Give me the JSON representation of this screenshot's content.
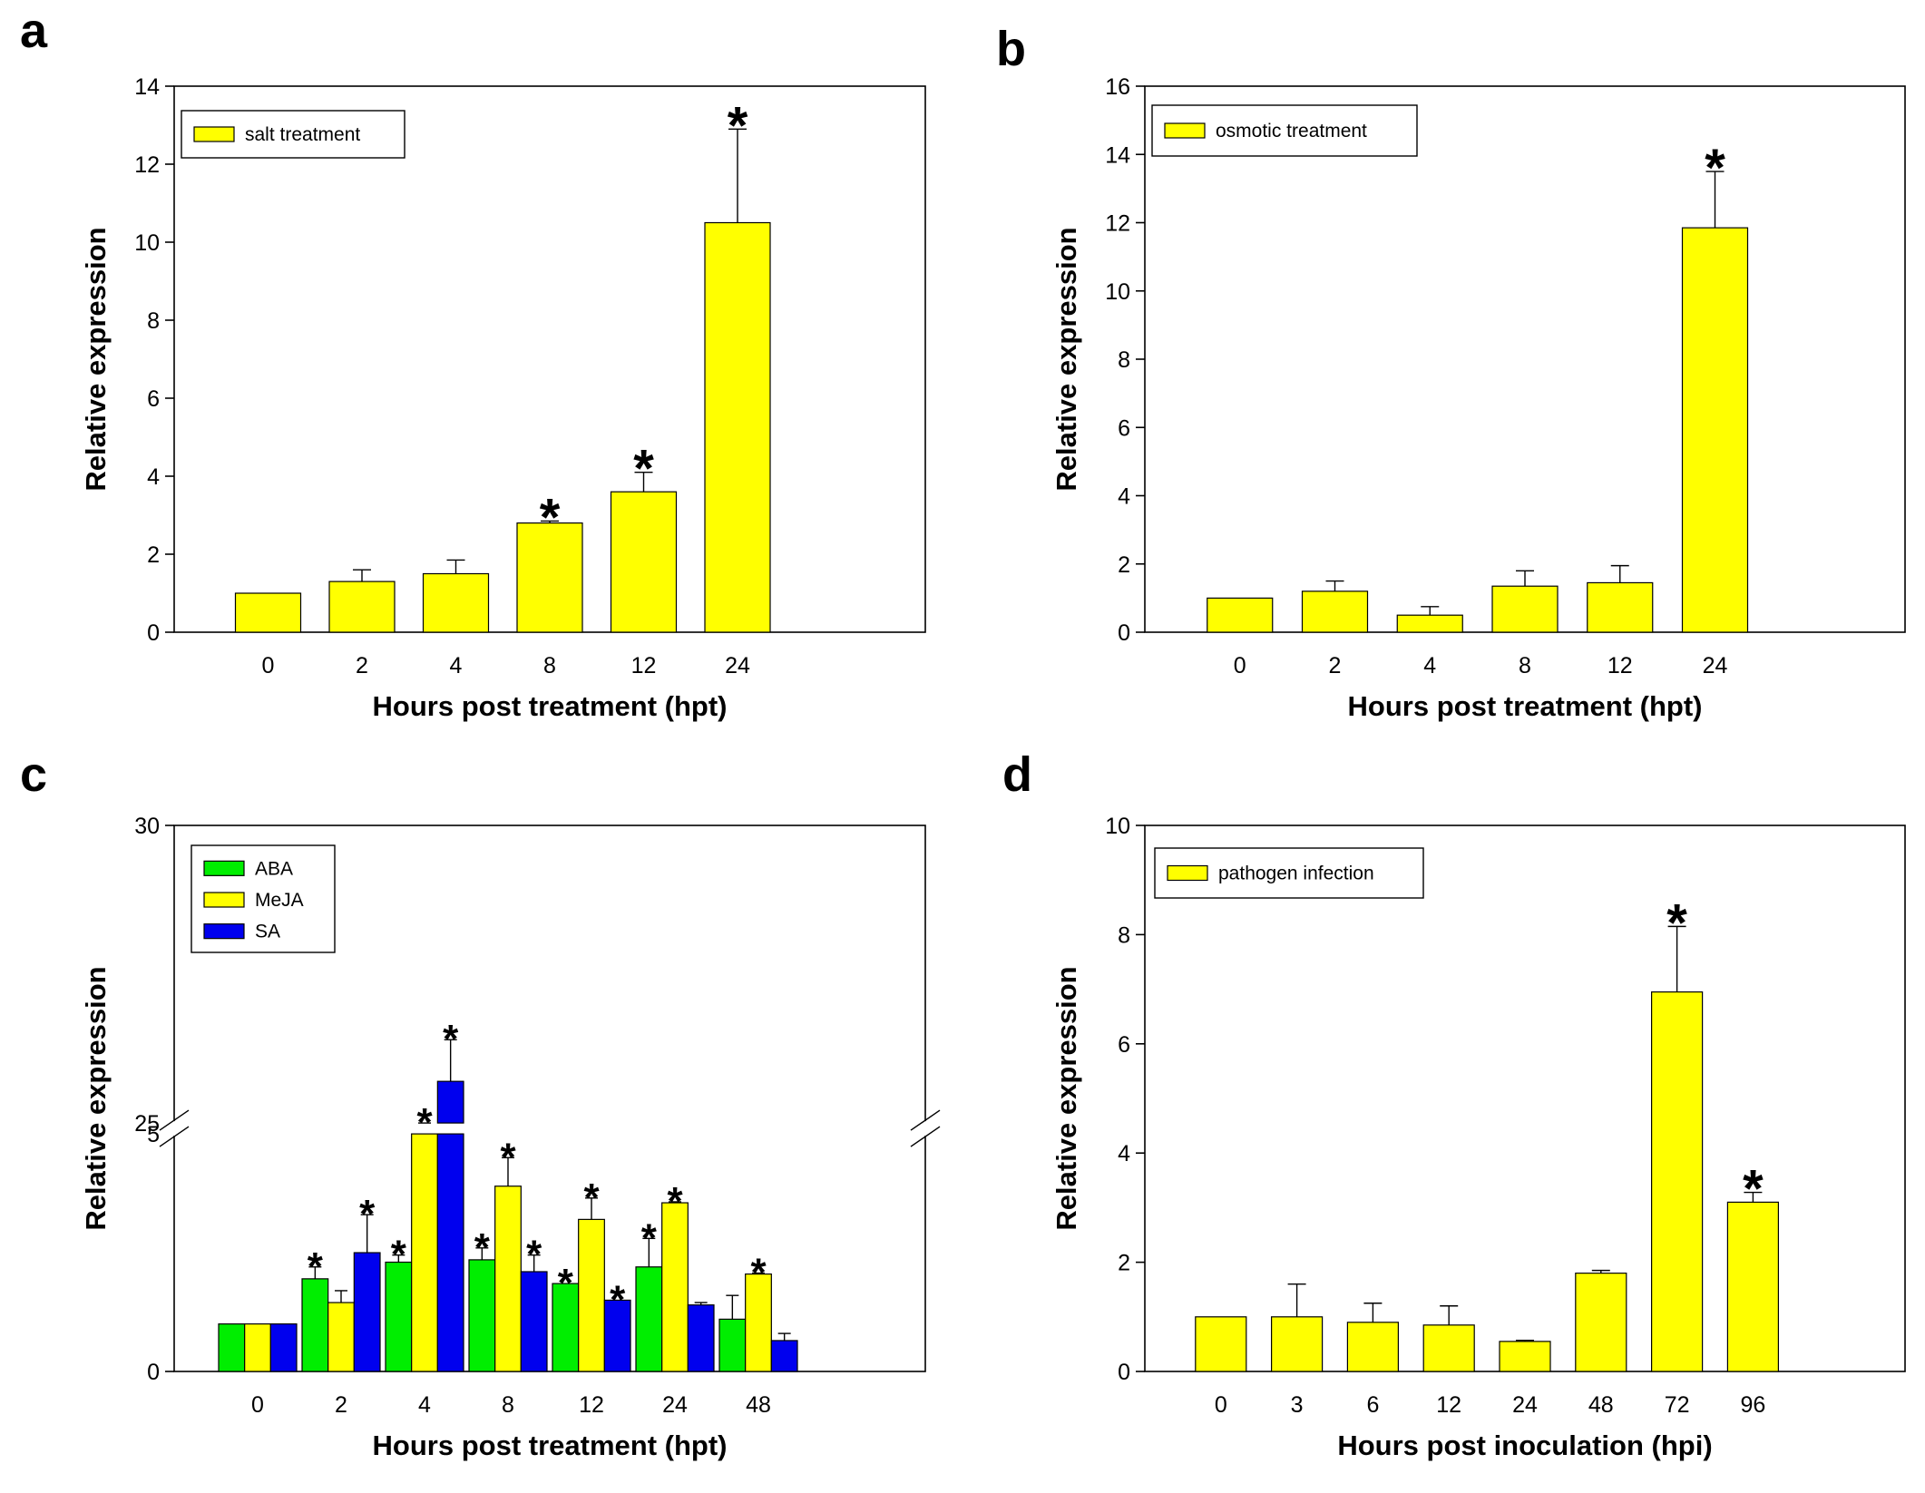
{
  "chart_data": [
    {
      "id": "a",
      "type": "bar",
      "panel_label": "a",
      "xlabel": "Hours post treatment (hpt)",
      "ylabel": "Relative expression",
      "categories": [
        "0",
        "2",
        "4",
        "8",
        "12",
        "24"
      ],
      "ylim": [
        0,
        14
      ],
      "yticks": [
        0,
        2,
        4,
        6,
        8,
        10,
        12,
        14
      ],
      "series": [
        {
          "name": "salt treatment",
          "color": "#FFFF00",
          "values": [
            1.0,
            1.3,
            1.5,
            2.8,
            3.6,
            10.5
          ],
          "errors": [
            0.0,
            0.3,
            0.35,
            0.05,
            0.5,
            2.4
          ],
          "significant": [
            false,
            false,
            false,
            true,
            true,
            true
          ]
        }
      ],
      "star": "*",
      "legend": [
        "salt treatment"
      ]
    },
    {
      "id": "b",
      "type": "bar",
      "panel_label": "b",
      "xlabel": "Hours post treatment (hpt)",
      "ylabel": "Relative expression",
      "categories": [
        "0",
        "2",
        "4",
        "8",
        "12",
        "24"
      ],
      "ylim": [
        0,
        16
      ],
      "yticks": [
        0,
        2,
        4,
        6,
        8,
        10,
        12,
        14,
        16
      ],
      "series": [
        {
          "name": "osmotic treatment",
          "color": "#FFFF00",
          "values": [
            1.0,
            1.2,
            0.5,
            1.35,
            1.45,
            11.85
          ],
          "errors": [
            0.0,
            0.3,
            0.25,
            0.45,
            0.5,
            1.65
          ],
          "significant": [
            false,
            false,
            false,
            false,
            false,
            true
          ]
        }
      ],
      "star": "*",
      "legend": [
        "osmotic treatment"
      ]
    },
    {
      "id": "c",
      "type": "bar",
      "panel_label": "c",
      "xlabel": "Hours post treatment (hpt)",
      "ylabel": "Relative expression",
      "categories": [
        "0",
        "2",
        "4",
        "8",
        "12",
        "24",
        "48"
      ],
      "axis_break": {
        "lower": [
          0,
          5
        ],
        "upper": [
          25,
          30
        ]
      },
      "yticks": [
        0,
        5,
        25,
        30
      ],
      "series": [
        {
          "name": "ABA",
          "color": "#00EE00",
          "values": [
            1.0,
            1.95,
            2.3,
            2.35,
            1.85,
            2.2,
            1.1
          ],
          "errors": [
            0.0,
            0.25,
            0.15,
            0.25,
            0.0,
            0.6,
            0.5
          ],
          "significant": [
            false,
            true,
            true,
            true,
            true,
            true,
            false
          ]
        },
        {
          "name": "MeJA",
          "color": "#FFFF00",
          "values": [
            1.0,
            1.45,
            5.8,
            3.9,
            3.2,
            3.55,
            2.05
          ],
          "errors": [
            0.0,
            0.25,
            0.15,
            0.6,
            0.45,
            0.02,
            0.02
          ],
          "significant": [
            false,
            false,
            true,
            true,
            true,
            true,
            true
          ]
        },
        {
          "name": "SA",
          "color": "#0000EE",
          "values": [
            1.0,
            2.5,
            25.7,
            2.1,
            1.5,
            1.4,
            0.65
          ],
          "errors": [
            0.0,
            0.8,
            0.7,
            0.35,
            0.0,
            0.05,
            0.15
          ],
          "significant": [
            false,
            true,
            true,
            true,
            true,
            false,
            false
          ]
        }
      ],
      "star": "*",
      "legend": [
        "ABA",
        "MeJA",
        "SA"
      ]
    },
    {
      "id": "d",
      "type": "bar",
      "panel_label": "d",
      "xlabel": "Hours post inoculation (hpi)",
      "ylabel": "Relative expression",
      "categories": [
        "0",
        "3",
        "6",
        "12",
        "24",
        "48",
        "72",
        "96"
      ],
      "ylim": [
        0,
        10
      ],
      "yticks": [
        0,
        2,
        4,
        6,
        8,
        10
      ],
      "series": [
        {
          "name": "pathogen infection",
          "color": "#FFFF00",
          "values": [
            1.0,
            1.0,
            0.9,
            0.85,
            0.55,
            1.8,
            6.95,
            3.1
          ],
          "errors": [
            0.0,
            0.6,
            0.35,
            0.35,
            0.02,
            0.05,
            1.2,
            0.18
          ],
          "significant": [
            false,
            false,
            false,
            false,
            false,
            false,
            true,
            true
          ]
        }
      ],
      "star": "*",
      "legend": [
        "pathogen infection"
      ]
    }
  ]
}
